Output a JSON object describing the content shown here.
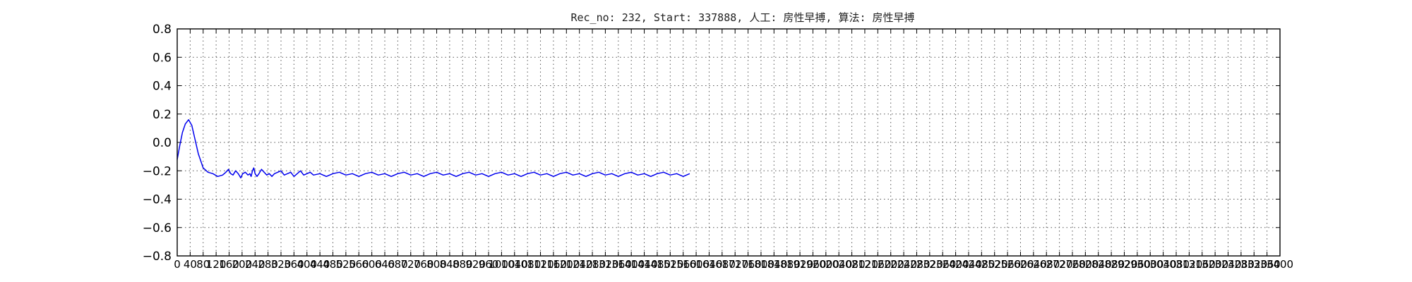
{
  "chart_data": {
    "type": "line",
    "title": "Rec_no: 232, Start: 337888, 人工: 房性早搏, 算法: 房性早搏",
    "xlabel": "",
    "ylabel": "",
    "xlim": [
      0,
      3400
    ],
    "ylim": [
      -0.8,
      0.8
    ],
    "grid": true,
    "yticks": [
      -0.8,
      -0.6,
      -0.4,
      -0.2,
      0.0,
      0.2,
      0.4,
      0.6,
      0.8
    ],
    "ytick_labels": [
      "−0.8",
      "−0.6",
      "−0.4",
      "−0.2",
      "0.0",
      "0.2",
      "0.4",
      "0.6",
      "0.8"
    ],
    "xticks": [
      0,
      40,
      80,
      120,
      160,
      200,
      240,
      280,
      320,
      360,
      400,
      440,
      480,
      520,
      560,
      600,
      640,
      680,
      720,
      760,
      800,
      840,
      880,
      920,
      960,
      1000,
      1040,
      1080,
      1120,
      1160,
      1200,
      1240,
      1280,
      1320,
      1360,
      1400,
      1440,
      1480,
      1520,
      1560,
      1600,
      1640,
      1680,
      1720,
      1760,
      1800,
      1840,
      1880,
      1920,
      1960,
      2000,
      2040,
      2080,
      2120,
      2160,
      2200,
      2240,
      2280,
      2320,
      2360,
      2400,
      2440,
      2480,
      2520,
      2560,
      2600,
      2640,
      2680,
      2720,
      2760,
      2800,
      2840,
      2880,
      2920,
      2960,
      3000,
      3040,
      3080,
      3120,
      3160,
      3200,
      3240,
      3280,
      3320,
      3360,
      3400
    ],
    "xtick_label_every": 1,
    "series": [
      {
        "color": "#0000ee",
        "segment": "normal",
        "x": [
          0,
          8,
          16,
          25,
          35,
          45,
          55,
          65,
          80,
          95,
          110,
          125,
          140,
          150,
          158,
          165,
          172,
          180,
          188,
          196,
          202,
          210,
          218,
          224,
          228,
          232,
          236,
          240,
          246,
          252,
          260,
          268,
          276,
          284,
          292,
          300,
          310,
          320,
          330,
          340,
          350,
          360,
          370,
          380,
          390,
          400,
          410,
          420,
          440,
          460,
          480,
          500,
          520,
          540,
          560,
          580,
          600,
          620,
          640,
          660,
          680,
          700,
          720,
          740,
          760,
          780,
          800,
          820,
          840,
          860,
          880,
          900,
          920,
          940,
          960,
          980,
          1000,
          1020,
          1040,
          1060,
          1080,
          1100,
          1120,
          1140,
          1160,
          1180,
          1200,
          1220,
          1240,
          1260,
          1280,
          1300,
          1320,
          1340,
          1360,
          1380,
          1400,
          1420,
          1440,
          1460,
          1480,
          1500,
          1520,
          1540,
          1560,
          1580
        ],
        "y": [
          -0.12,
          -0.02,
          0.07,
          0.13,
          0.16,
          0.12,
          0.02,
          -0.08,
          -0.18,
          -0.21,
          -0.22,
          -0.24,
          -0.23,
          -0.21,
          -0.19,
          -0.22,
          -0.23,
          -0.2,
          -0.22,
          -0.25,
          -0.22,
          -0.21,
          -0.23,
          -0.22,
          -0.24,
          -0.2,
          -0.18,
          -0.22,
          -0.24,
          -0.22,
          -0.19,
          -0.21,
          -0.23,
          -0.22,
          -0.24,
          -0.22,
          -0.21,
          -0.2,
          -0.23,
          -0.22,
          -0.21,
          -0.24,
          -0.22,
          -0.2,
          -0.23,
          -0.22,
          -0.21,
          -0.23,
          -0.22,
          -0.24,
          -0.22,
          -0.21,
          -0.23,
          -0.22,
          -0.24,
          -0.22,
          -0.21,
          -0.23,
          -0.22,
          -0.24,
          -0.22,
          -0.21,
          -0.23,
          -0.22,
          -0.24,
          -0.22,
          -0.21,
          -0.23,
          -0.22,
          -0.24,
          -0.22,
          -0.21,
          -0.23,
          -0.22,
          -0.24,
          -0.22,
          -0.21,
          -0.23,
          -0.22,
          -0.24,
          -0.22,
          -0.21,
          -0.23,
          -0.22,
          -0.24,
          -0.22,
          -0.21,
          -0.23,
          -0.22,
          -0.24,
          -0.22,
          -0.21,
          -0.23,
          -0.22,
          -0.24,
          -0.22,
          -0.21,
          -0.23,
          -0.22,
          -0.24,
          -0.22,
          -0.21,
          -0.23,
          -0.22,
          -0.24,
          -0.22
        ]
      }
    ]
  }
}
